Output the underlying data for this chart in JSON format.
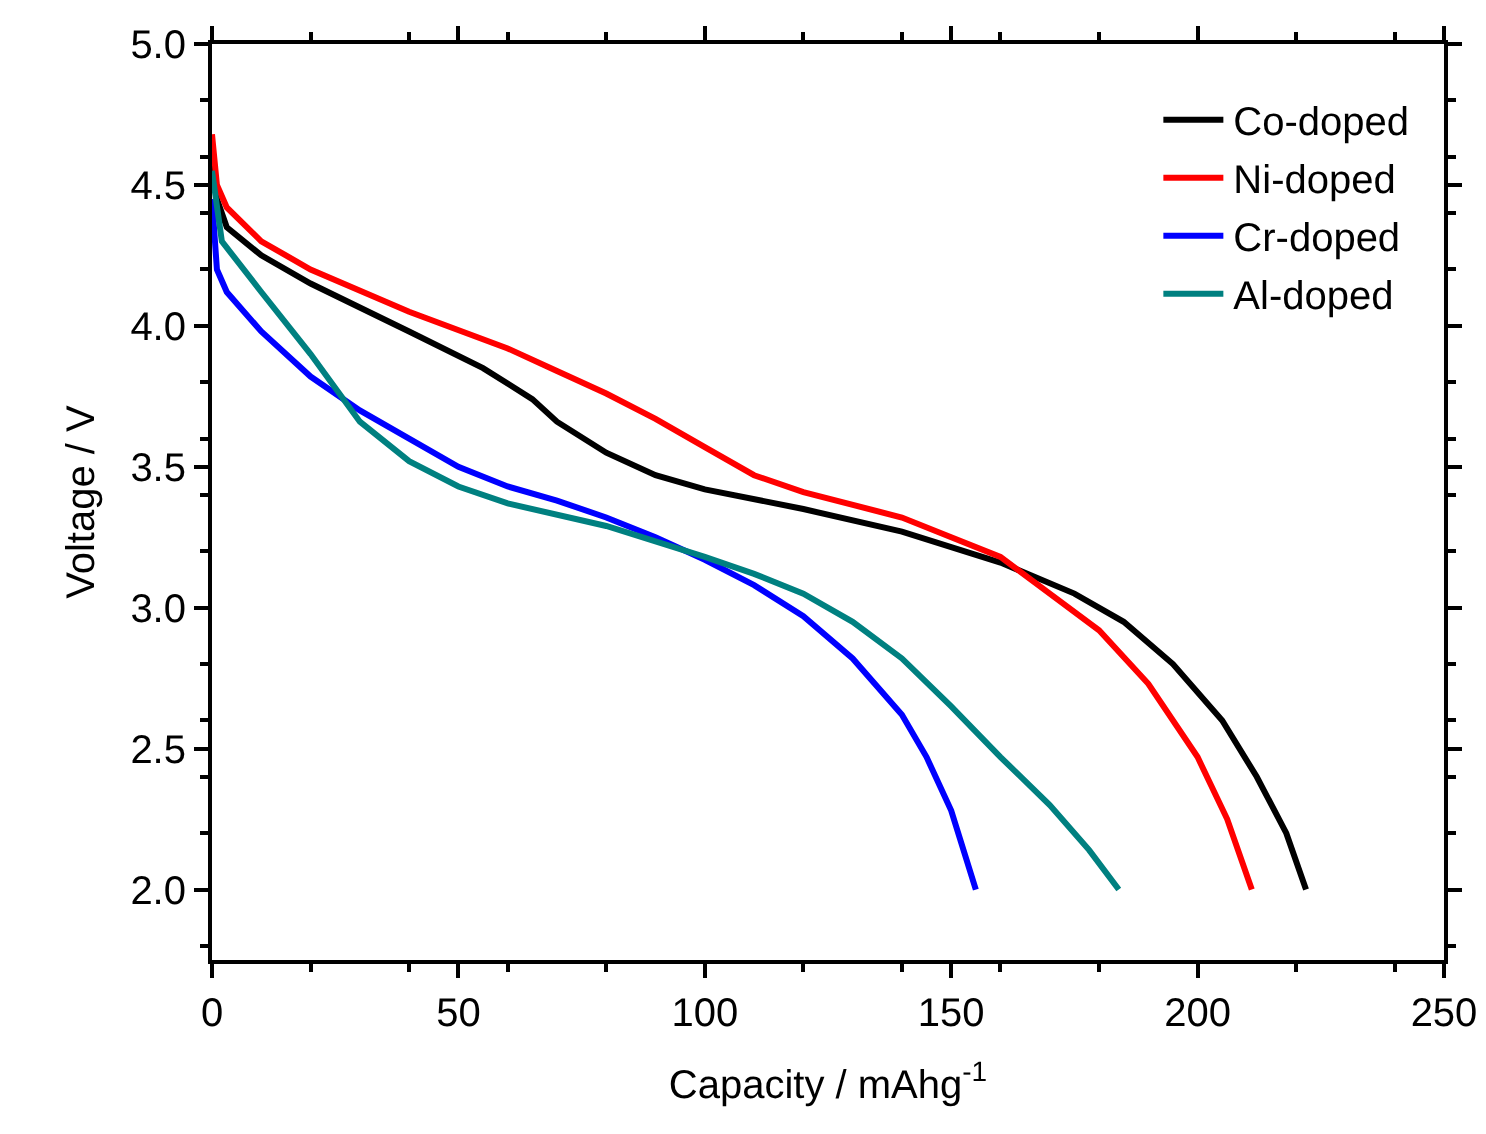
{
  "chart_data": {
    "type": "line",
    "xlabel": "Capacity / mAhg$^{-1}$",
    "ylabel": "Voltage / V",
    "xlim": [
      0,
      250
    ],
    "ylim": [
      1.75,
      5.0
    ],
    "xticks": [
      0,
      50,
      100,
      150,
      200,
      250
    ],
    "yticks": [
      {
        "value": 2.0,
        "label": "2.0"
      },
      {
        "value": 2.5,
        "label": "2.5"
      },
      {
        "value": 3.0,
        "label": "3.0"
      },
      {
        "value": 3.5,
        "label": "3.5"
      },
      {
        "value": 4.0,
        "label": "4.0"
      },
      {
        "value": 4.5,
        "label": "4.5"
      },
      {
        "value": 5.0,
        "label": "5.0"
      }
    ],
    "grid": false,
    "legend": "top right",
    "marker": "none",
    "line_style": "solid",
    "series": [
      {
        "name": "Co-doped",
        "color": "#000000",
        "x": [
          0,
          1,
          3,
          10,
          20,
          40,
          55,
          65,
          70,
          80,
          90,
          100,
          120,
          140,
          160,
          175,
          185,
          195,
          205,
          212,
          218,
          222
        ],
        "values": [
          4.6,
          4.45,
          4.35,
          4.25,
          4.15,
          3.98,
          3.85,
          3.74,
          3.66,
          3.55,
          3.47,
          3.42,
          3.35,
          3.27,
          3.16,
          3.05,
          2.95,
          2.8,
          2.6,
          2.4,
          2.2,
          2.0
        ]
      },
      {
        "name": "Ni-doped",
        "color": "#ff0000",
        "x": [
          0,
          1,
          3,
          10,
          20,
          40,
          60,
          70,
          80,
          90,
          100,
          110,
          120,
          140,
          150,
          160,
          170,
          180,
          190,
          200,
          206,
          211
        ],
        "values": [
          4.68,
          4.5,
          4.42,
          4.3,
          4.2,
          4.05,
          3.92,
          3.84,
          3.76,
          3.67,
          3.57,
          3.47,
          3.41,
          3.32,
          3.25,
          3.18,
          3.05,
          2.92,
          2.73,
          2.47,
          2.25,
          2.0
        ]
      },
      {
        "name": "Cr-doped",
        "color": "#0000ff",
        "x": [
          0,
          1,
          3,
          10,
          20,
          30,
          40,
          50,
          60,
          70,
          80,
          90,
          100,
          110,
          120,
          130,
          140,
          145,
          150,
          155
        ],
        "values": [
          4.45,
          4.2,
          4.12,
          3.98,
          3.82,
          3.7,
          3.6,
          3.5,
          3.43,
          3.38,
          3.32,
          3.25,
          3.17,
          3.08,
          2.97,
          2.82,
          2.62,
          2.47,
          2.28,
          2.0
        ]
      },
      {
        "name": "Al-doped",
        "color": "#008080",
        "x": [
          0,
          2,
          10,
          20,
          30,
          40,
          50,
          60,
          80,
          100,
          110,
          120,
          130,
          140,
          150,
          160,
          170,
          178,
          184
        ],
        "values": [
          4.55,
          4.3,
          4.12,
          3.9,
          3.66,
          3.52,
          3.43,
          3.37,
          3.29,
          3.18,
          3.12,
          3.05,
          2.95,
          2.82,
          2.65,
          2.47,
          2.3,
          2.14,
          2.0
        ]
      }
    ]
  }
}
